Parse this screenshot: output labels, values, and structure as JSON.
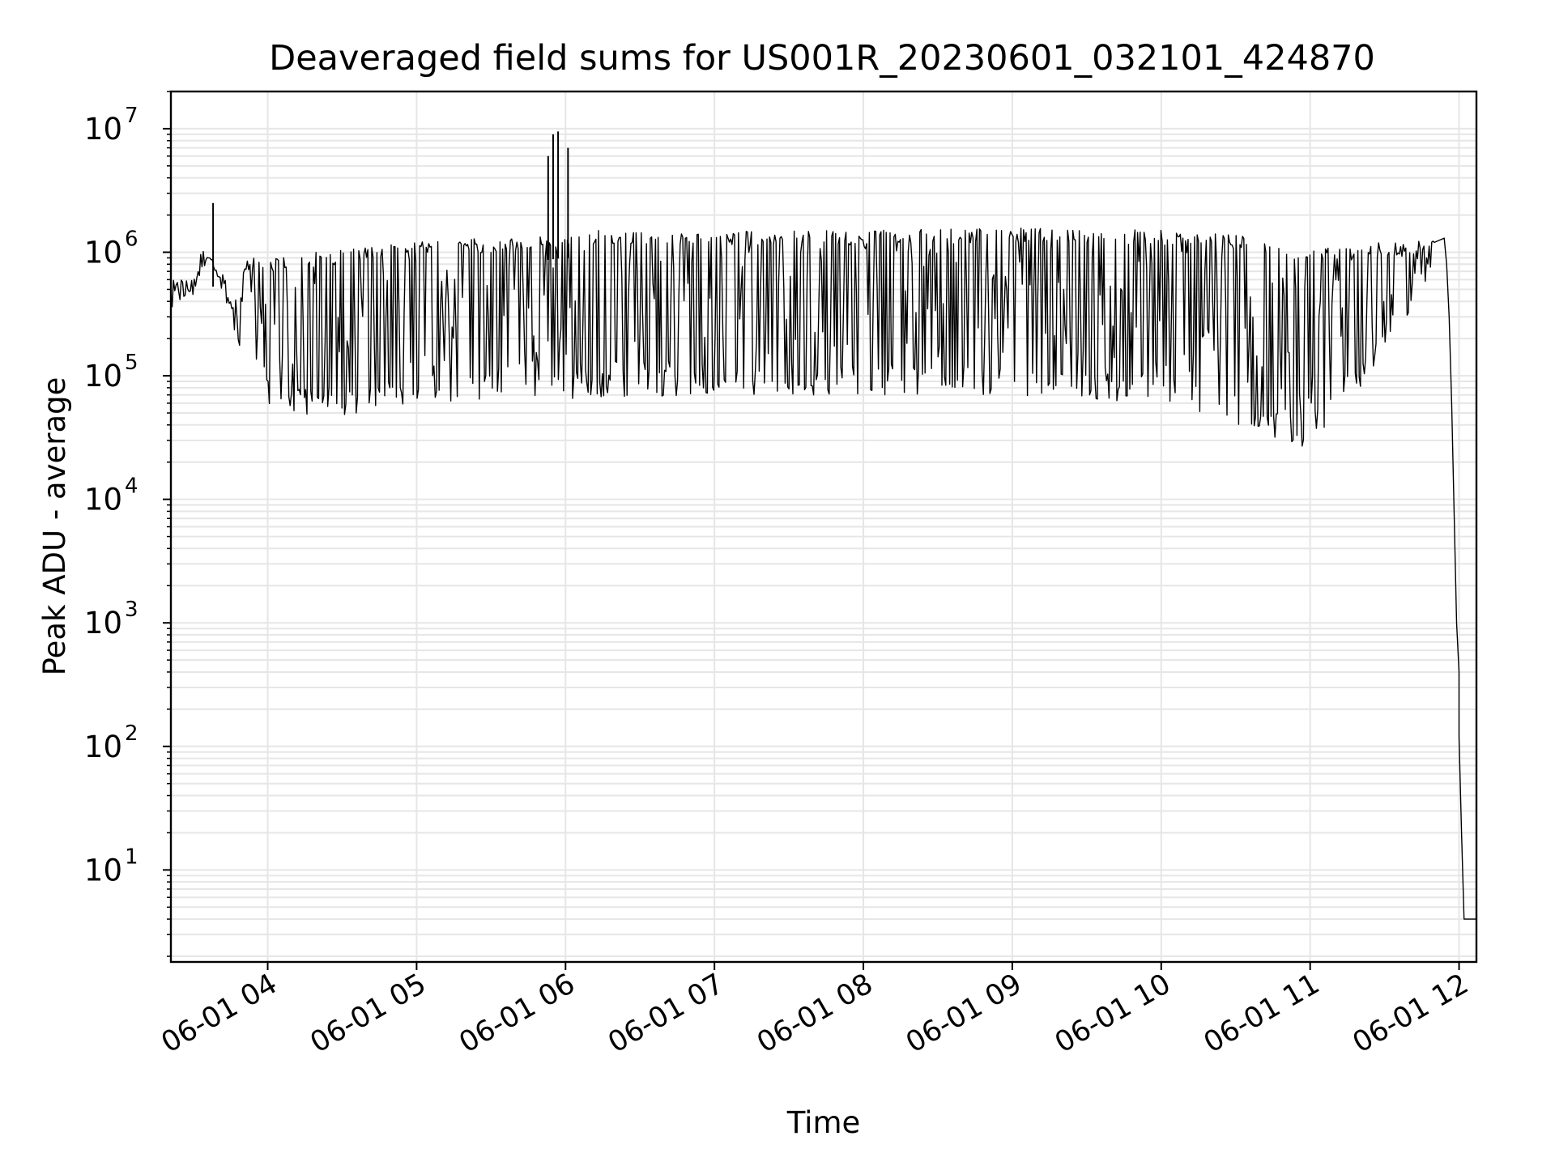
{
  "chart_data": {
    "type": "line",
    "title": "Deaveraged field sums for US001R_20230601_032101_424870",
    "xlabel": "Time",
    "ylabel": "Peak ADU - average",
    "x_range": [
      "2023-06-01 03:21",
      "2023-06-01 12:07"
    ],
    "y_scale": "log",
    "ylim": [
      1.8,
      20000000
    ],
    "grid": true,
    "grid_color": "#e6e6e6",
    "line_color": "#000000",
    "x_ticks": [
      {
        "value": "2023-06-01 04:00",
        "label": "06-01 04"
      },
      {
        "value": "2023-06-01 05:00",
        "label": "06-01 05"
      },
      {
        "value": "2023-06-01 06:00",
        "label": "06-01 06"
      },
      {
        "value": "2023-06-01 07:00",
        "label": "06-01 07"
      },
      {
        "value": "2023-06-01 08:00",
        "label": "06-01 08"
      },
      {
        "value": "2023-06-01 09:00",
        "label": "06-01 09"
      },
      {
        "value": "2023-06-01 10:00",
        "label": "06-01 10"
      },
      {
        "value": "2023-06-01 11:00",
        "label": "06-01 11"
      },
      {
        "value": "2023-06-01 12:00",
        "label": "06-01 12"
      }
    ],
    "y_ticks": [
      {
        "value": 10,
        "base": "10",
        "exp": "1"
      },
      {
        "value": 100,
        "base": "10",
        "exp": "2"
      },
      {
        "value": 1000,
        "base": "10",
        "exp": "3"
      },
      {
        "value": 10000,
        "base": "10",
        "exp": "4"
      },
      {
        "value": 100000,
        "base": "10",
        "exp": "5"
      },
      {
        "value": 1000000,
        "base": "10",
        "exp": "6"
      },
      {
        "value": 10000000,
        "base": "10",
        "exp": "7"
      }
    ],
    "series": [
      {
        "upper_envelope": [
          [
            "2023-06-01 03:21",
            600000
          ],
          [
            "2023-06-01 03:30",
            600000
          ],
          [
            "2023-06-01 03:36",
            1100000
          ],
          [
            "2023-06-01 03:40",
            700000
          ],
          [
            "2023-06-01 03:46",
            400000
          ],
          [
            "2023-06-01 03:52",
            900000
          ],
          [
            "2023-06-01 04:00",
            900000
          ],
          [
            "2023-06-01 04:20",
            1000000
          ],
          [
            "2023-06-01 04:40",
            1100000
          ],
          [
            "2023-06-01 05:00",
            1300000
          ],
          [
            "2023-06-01 05:30",
            1300000
          ],
          [
            "2023-06-01 06:00",
            1500000
          ],
          [
            "2023-06-01 07:00",
            1500000
          ],
          [
            "2023-06-01 08:00",
            1500000
          ],
          [
            "2023-06-01 09:00",
            1600000
          ],
          [
            "2023-06-01 10:00",
            1500000
          ],
          [
            "2023-06-01 10:30",
            1400000
          ],
          [
            "2023-06-01 11:00",
            1100000
          ],
          [
            "2023-06-01 11:20",
            1200000
          ],
          [
            "2023-06-01 11:40",
            1200000
          ],
          [
            "2023-06-01 11:52",
            1300000
          ],
          [
            "2023-06-01 12:07",
            4
          ]
        ],
        "lower_envelope": [
          [
            "2023-06-01 03:21",
            350000
          ],
          [
            "2023-06-01 03:30",
            450000
          ],
          [
            "2023-06-01 03:36",
            900000
          ],
          [
            "2023-06-01 03:40",
            600000
          ],
          [
            "2023-06-01 03:46",
            250000
          ],
          [
            "2023-06-01 03:52",
            100000
          ],
          [
            "2023-06-01 04:00",
            60000
          ],
          [
            "2023-06-01 04:20",
            40000
          ],
          [
            "2023-06-01 04:40",
            50000
          ],
          [
            "2023-06-01 05:00",
            60000
          ],
          [
            "2023-06-01 05:30",
            60000
          ],
          [
            "2023-06-01 06:00",
            65000
          ],
          [
            "2023-06-01 07:00",
            70000
          ],
          [
            "2023-06-01 08:00",
            70000
          ],
          [
            "2023-06-01 09:00",
            70000
          ],
          [
            "2023-06-01 10:00",
            60000
          ],
          [
            "2023-06-01 10:30",
            40000
          ],
          [
            "2023-06-01 11:00",
            25000
          ],
          [
            "2023-06-01 11:20",
            80000
          ],
          [
            "2023-06-01 11:40",
            300000
          ],
          [
            "2023-06-01 11:52",
            900000
          ],
          [
            "2023-06-01 12:07",
            4
          ]
        ],
        "spikes": [
          [
            "2023-06-01 03:38",
            2500000
          ],
          [
            "2023-06-01 05:53",
            6000000
          ],
          [
            "2023-06-01 05:55",
            9000000
          ],
          [
            "2023-06-01 05:57",
            9500000
          ],
          [
            "2023-06-01 06:01",
            7000000
          ]
        ],
        "tail": [
          [
            "2023-06-01 11:50",
            1200000
          ],
          [
            "2023-06-01 11:54",
            1300000
          ],
          [
            "2023-06-01 11:55",
            800000
          ],
          [
            "2023-06-01 11:56",
            300000
          ],
          [
            "2023-06-01 11:57",
            60000
          ],
          [
            "2023-06-01 11:58",
            8000
          ],
          [
            "2023-06-01 11:59",
            1000
          ],
          [
            "2023-06-01 12:00",
            400
          ],
          [
            "2023-06-01 12:00",
            120
          ],
          [
            "2023-06-01 12:01",
            20
          ],
          [
            "2023-06-01 12:02",
            4
          ],
          [
            "2023-06-01 12:07",
            4
          ]
        ]
      }
    ]
  }
}
